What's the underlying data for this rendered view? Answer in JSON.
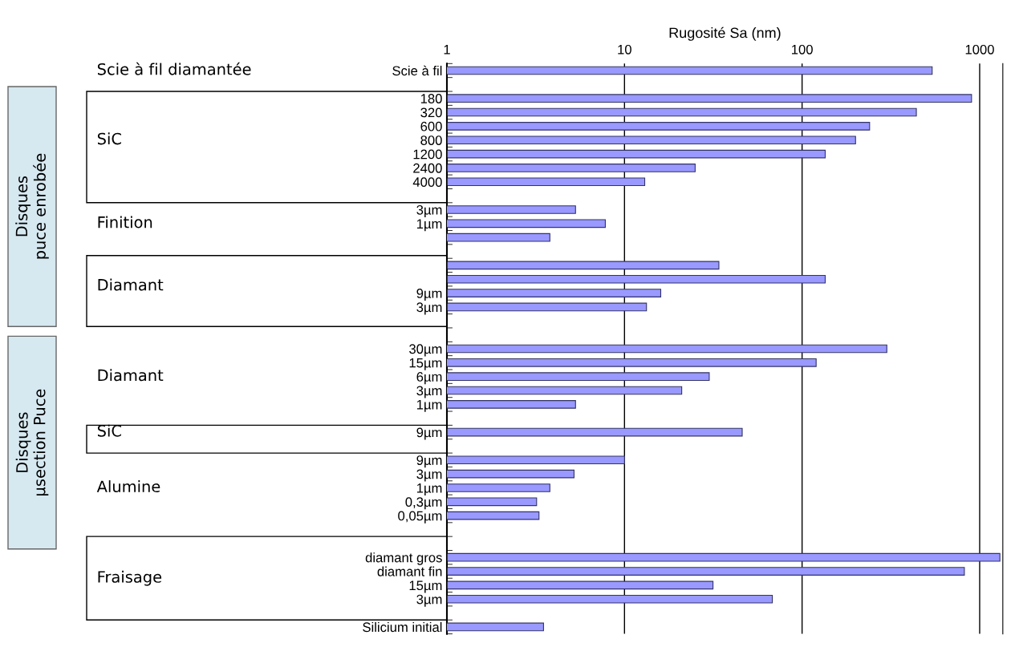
{
  "chart_data": {
    "type": "bar",
    "orientation": "horizontal",
    "log": "x",
    "xlabel": "Rugosité Sa (nm)",
    "categories": [
      "Scie à fil",
      null,
      "180",
      "320",
      "600",
      "800",
      "1200",
      "2400",
      "4000",
      null,
      "3µm",
      "1µm",
      null,
      null,
      null,
      null,
      "9µm",
      "3µm",
      null,
      null,
      "30µm",
      "15µm",
      "6µm",
      "3µm",
      "1µm",
      null,
      "9µm",
      null,
      "9µm",
      "3µm",
      "1µm",
      "0,3µm",
      "0,05µm",
      null,
      null,
      "diamant gros",
      "diamant fin",
      "15µm",
      "3µm",
      null,
      "Silicium initial"
    ],
    "values": [
      540,
      null,
      900,
      440,
      240,
      200,
      135,
      25,
      13,
      null,
      5.3,
      7.8,
      3.8,
      null,
      34,
      135,
      16,
      13.3,
      null,
      null,
      300,
      120,
      30,
      21,
      5.3,
      null,
      46,
      null,
      10,
      5.2,
      3.8,
      3.2,
      3.3,
      null,
      null,
      1300,
      820,
      31.5,
      68,
      null,
      3.5
    ],
    "color": "#9999ff",
    "xlim": [
      1,
      1350
    ],
    "xticks": [
      1,
      10,
      100,
      1000
    ],
    "grid": "x",
    "annotations": [
      "Scie à fil diamantée",
      "SiC",
      "Finition",
      "Diamant",
      "Diamant",
      "SiC",
      "Alumine",
      "Fraisage",
      "Disques\npuce enrobée",
      "Disques\nµsection Puce"
    ]
  }
}
